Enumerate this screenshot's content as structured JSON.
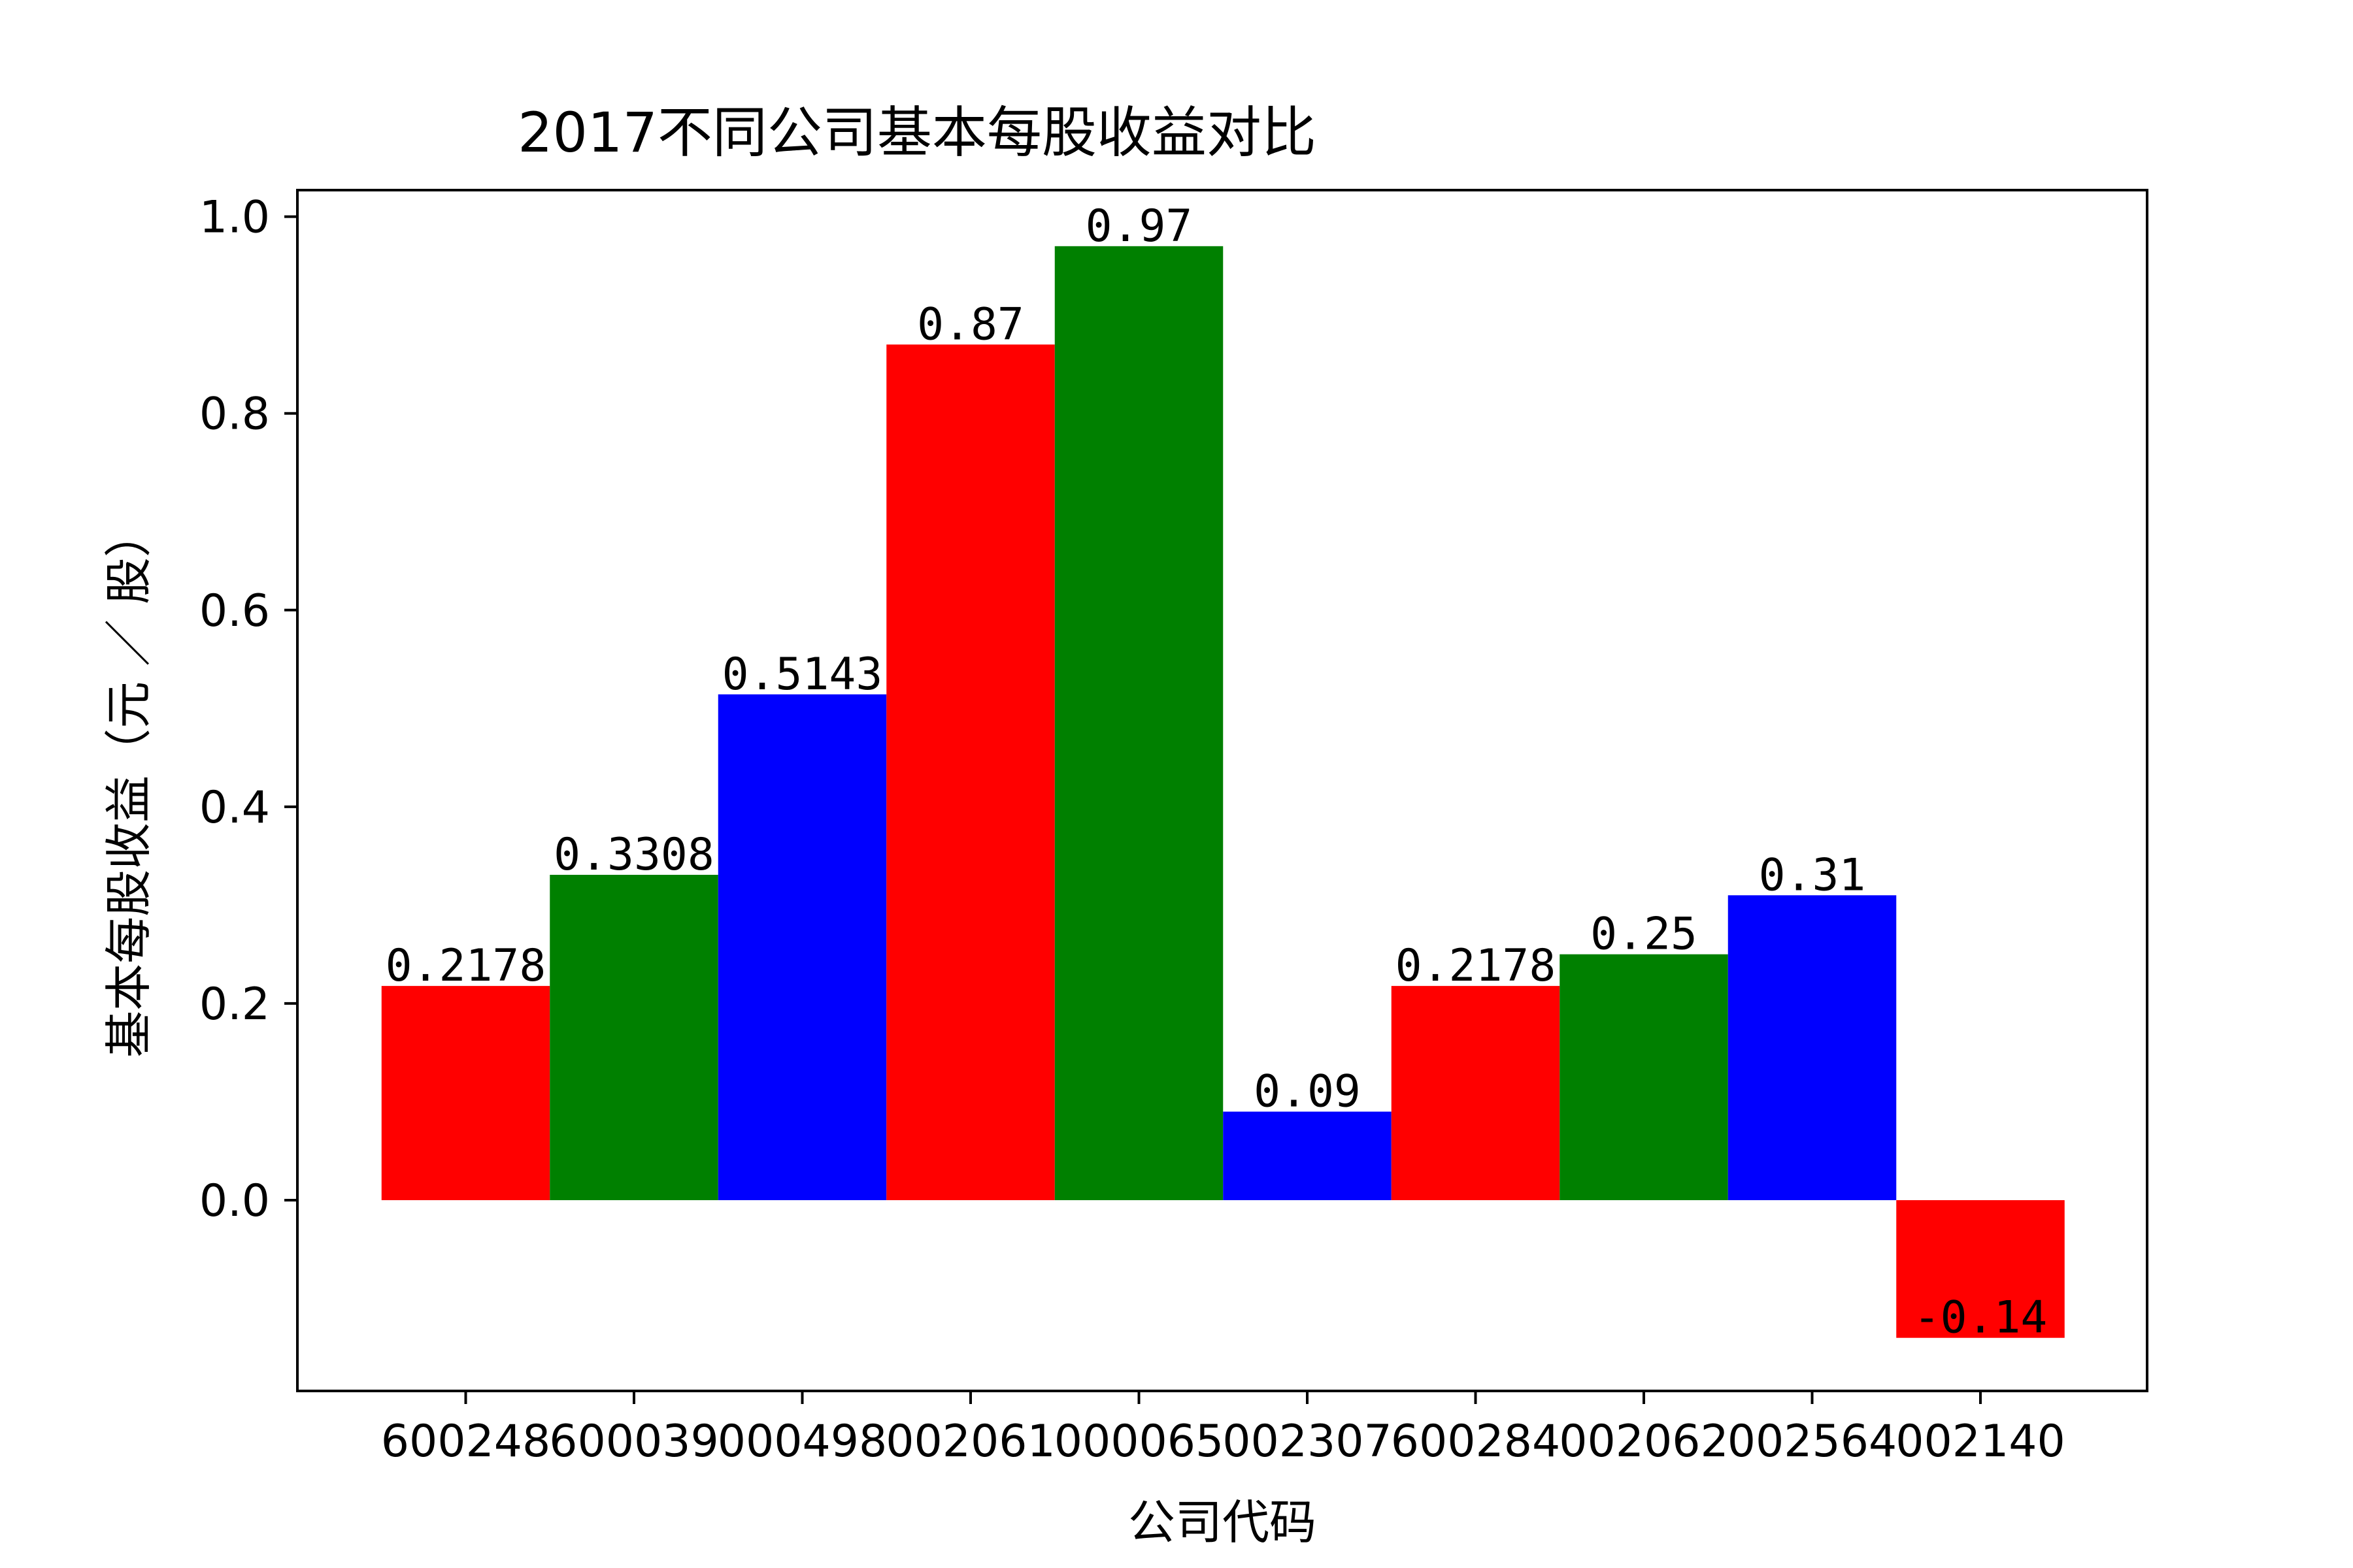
{
  "chart_data": {
    "type": "bar",
    "title": "2017不同公司基本每股收益对比",
    "xlabel": "公司代码",
    "ylabel": "基本每股收益（元 ／ 股）",
    "categories": [
      "600248",
      "600039",
      "000498",
      "002061",
      "000065",
      "002307",
      "600284",
      "002062",
      "002564",
      "002140"
    ],
    "values": [
      0.2178,
      0.3308,
      0.5143,
      0.87,
      0.97,
      0.09,
      0.2178,
      0.25,
      0.31,
      -0.14
    ],
    "value_labels": [
      "0.2178",
      "0.3308",
      "0.5143",
      "0.87",
      "0.97",
      "0.09",
      "0.2178",
      "0.25",
      "0.31",
      "-0.14"
    ],
    "colors": [
      "#ff0000",
      "#008000",
      "#0000ff",
      "#ff0000",
      "#008000",
      "#0000ff",
      "#ff0000",
      "#008000",
      "#0000ff",
      "#ff0000"
    ],
    "yticks": [
      0.0,
      0.2,
      0.4,
      0.6,
      0.8,
      1.0
    ],
    "ytick_labels": [
      "0.0",
      "0.2",
      "0.4",
      "0.6",
      "0.8",
      "1.0"
    ],
    "ylim": [
      -0.194,
      1.027
    ],
    "grid": false,
    "legend": false
  }
}
